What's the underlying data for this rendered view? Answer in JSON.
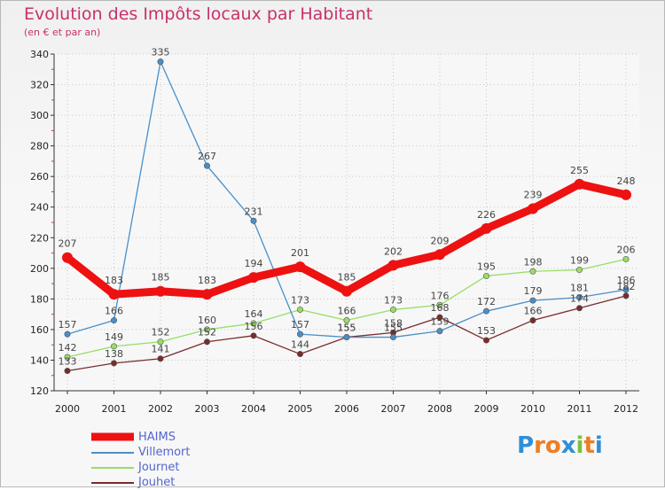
{
  "chart_data": {
    "type": "line",
    "title": "Evolution des Impôts locaux par Habitant",
    "subtitle": "(en € et par an)",
    "categories": [
      "2000",
      "2001",
      "2002",
      "2003",
      "2004",
      "2005",
      "2006",
      "2007",
      "2008",
      "2009",
      "2010",
      "2011",
      "2012"
    ],
    "ylim": [
      120,
      340
    ],
    "yticks": [
      120,
      140,
      160,
      180,
      200,
      220,
      240,
      260,
      280,
      300,
      320,
      340
    ],
    "series": [
      {
        "name": "HAIMS",
        "color": "#ee1111",
        "values": [
          207,
          183,
          185,
          183,
          194,
          201,
          185,
          202,
          209,
          226,
          239,
          255,
          248
        ]
      },
      {
        "name": "Villemort",
        "color": "#4a8fc8",
        "values": [
          157,
          166,
          335,
          267,
          231,
          157,
          155,
          155,
          159,
          172,
          179,
          181,
          186
        ]
      },
      {
        "name": "Journet",
        "color": "#99dd66",
        "values": [
          142,
          149,
          152,
          160,
          164,
          173,
          166,
          173,
          176,
          195,
          198,
          199,
          206
        ]
      },
      {
        "name": "Jouhet",
        "color": "#7a2b2b",
        "values": [
          133,
          138,
          141,
          152,
          156,
          144,
          155,
          158,
          168,
          153,
          166,
          174,
          182
        ]
      }
    ]
  },
  "legend": {
    "items": [
      "HAIMS",
      "Villemort",
      "Journet",
      "Jouhet"
    ]
  },
  "logo": {
    "letters": [
      "P",
      "r",
      "o",
      "x",
      "i",
      "t",
      "i"
    ],
    "colors": [
      "#2f8fd8",
      "#ef7d22",
      "#ef7d22",
      "#2f8fd8",
      "#7cbf3c",
      "#ef7d22",
      "#2f8fd8"
    ]
  }
}
